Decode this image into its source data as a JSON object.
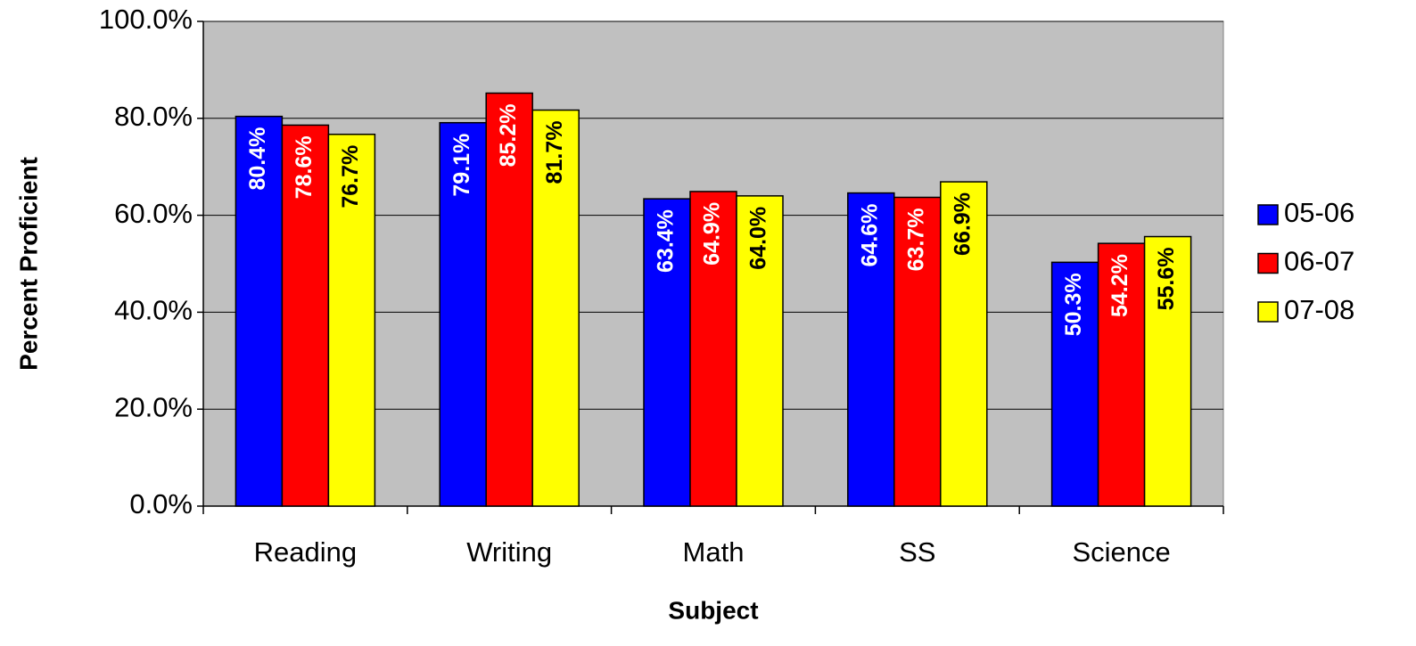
{
  "chart_data": {
    "type": "bar",
    "x_label": "Subject",
    "y_label": "Percent Proficient",
    "categories": [
      "Reading",
      "Writing",
      "Math",
      "SS",
      "Science"
    ],
    "series": [
      {
        "name": "05-06",
        "color": "#0000ff",
        "label_color": "#ffffff",
        "values": [
          80.4,
          79.1,
          63.4,
          64.6,
          50.3
        ],
        "value_labels": [
          "80.4%",
          "79.1%",
          "63.4%",
          "64.6%",
          "50.3%"
        ]
      },
      {
        "name": "06-07",
        "color": "#ff0000",
        "label_color": "#ffffff",
        "values": [
          78.6,
          85.2,
          64.9,
          63.7,
          54.2
        ],
        "value_labels": [
          "78.6%",
          "85.2%",
          "64.9%",
          "63.7%",
          "54.2%"
        ]
      },
      {
        "name": "07-08",
        "color": "#ffff00",
        "label_color": "#000000",
        "values": [
          76.7,
          81.7,
          64.0,
          66.9,
          55.6
        ],
        "value_labels": [
          "76.7%",
          "81.7%",
          "64.0%",
          "66.9%",
          "55.6%"
        ]
      }
    ],
    "ylim": [
      0,
      100
    ],
    "yticks": [
      {
        "value": 0,
        "label": "0.0%"
      },
      {
        "value": 20,
        "label": "20.0%"
      },
      {
        "value": 40,
        "label": "40.0%"
      },
      {
        "value": 60,
        "label": "60.0%"
      },
      {
        "value": 80,
        "label": "80.0%"
      },
      {
        "value": 100,
        "label": "100.0%"
      }
    ],
    "grid": true,
    "plot_background": "#c0c0c0",
    "legend": "right"
  }
}
